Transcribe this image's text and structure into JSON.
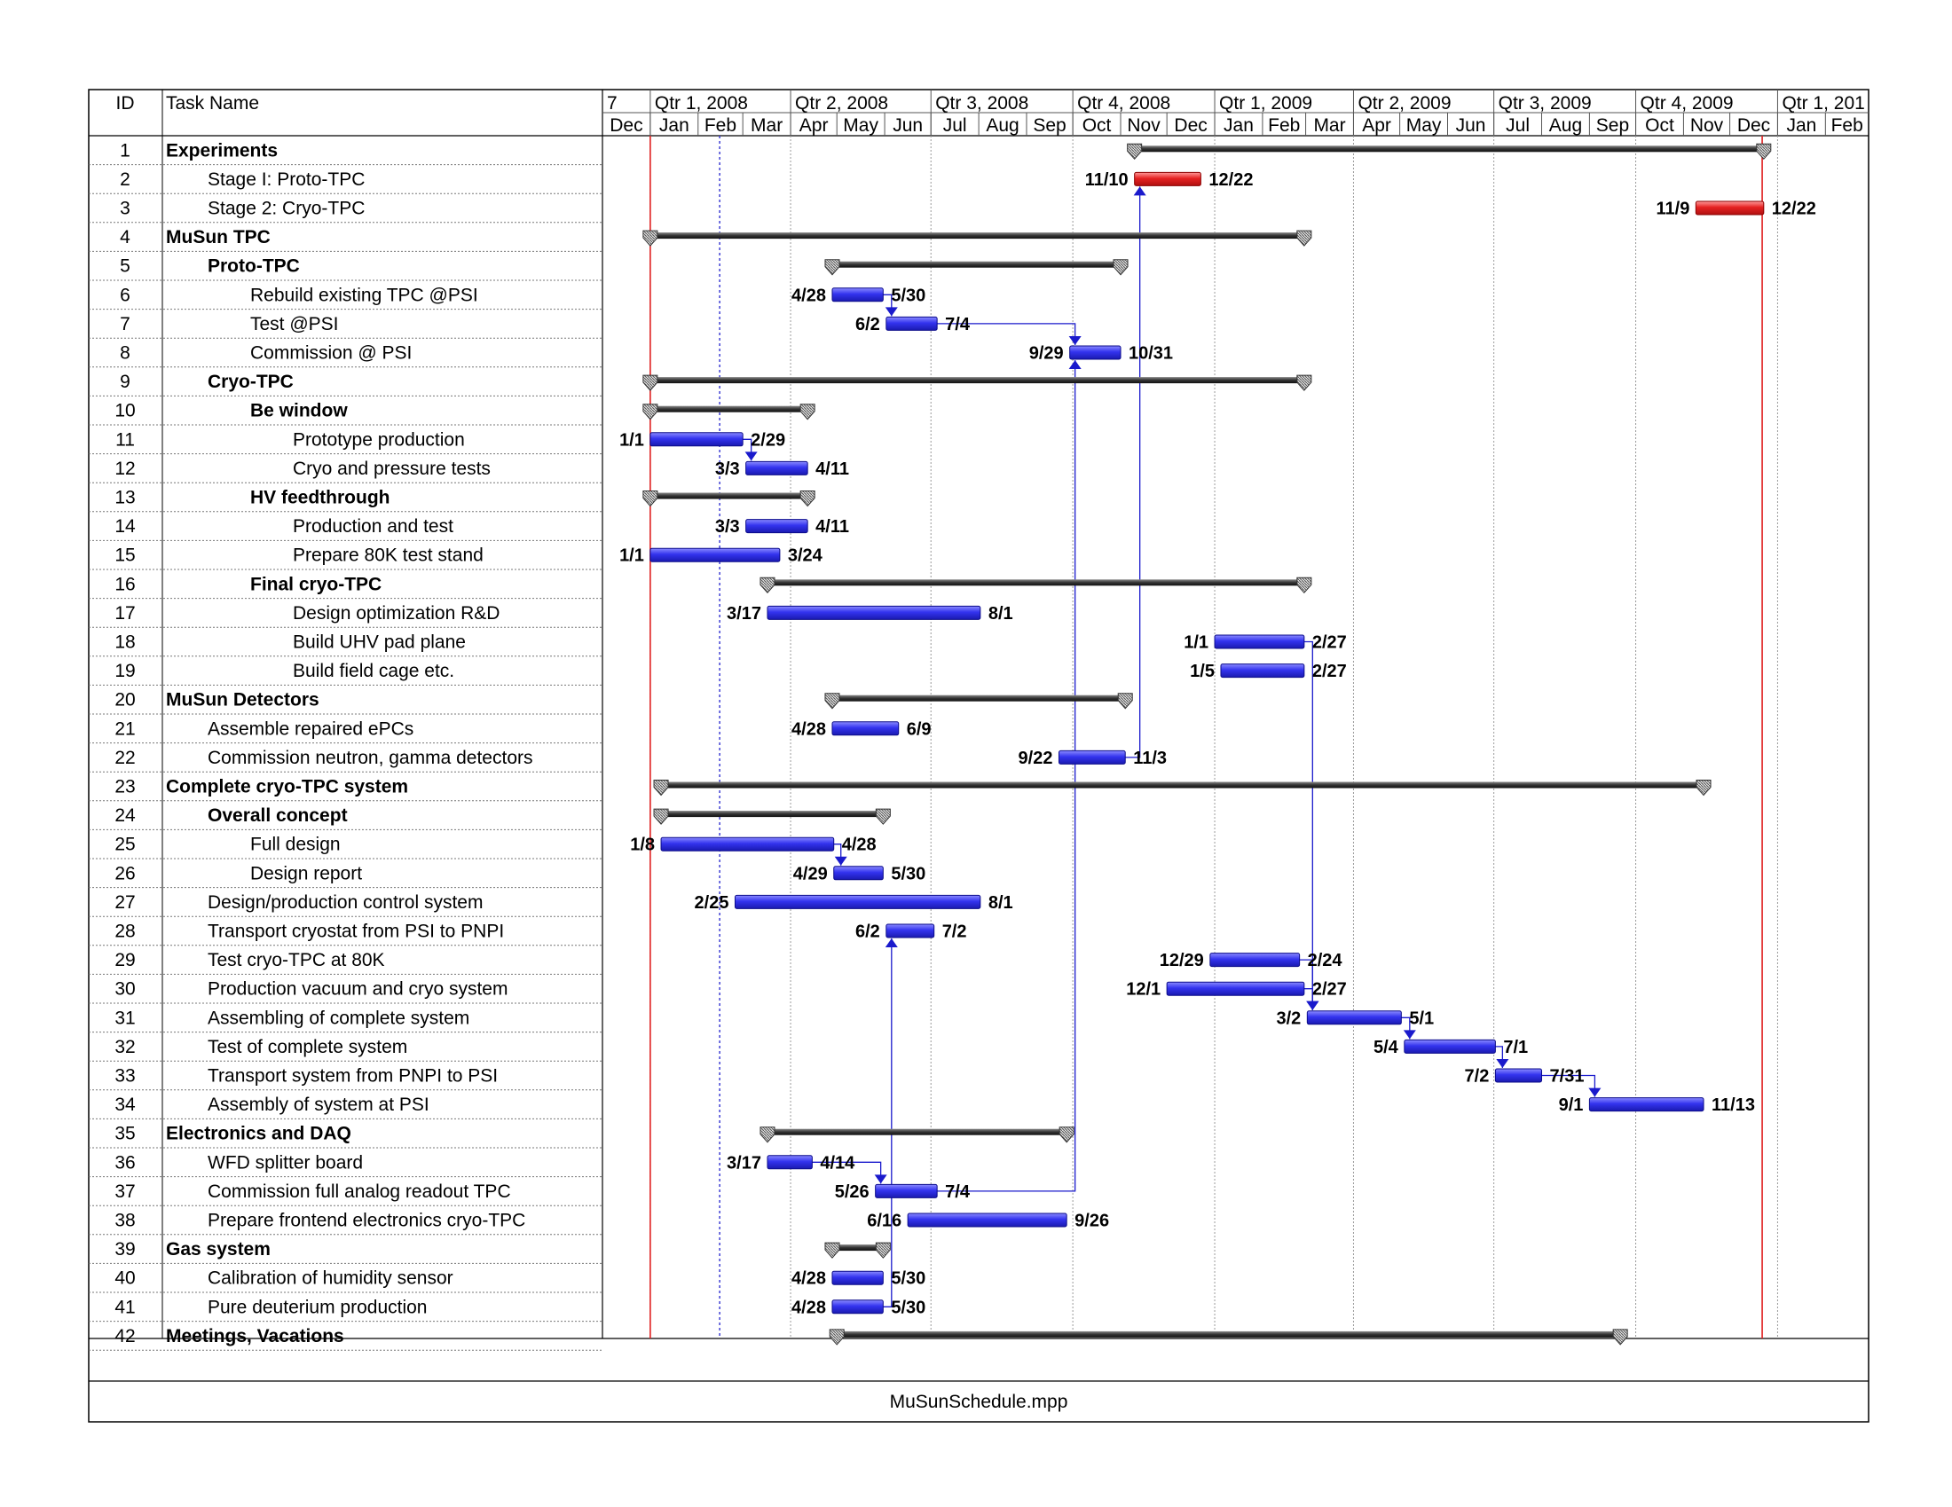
{
  "header": {
    "id": "ID",
    "task_name": "Task Name"
  },
  "footer": {
    "filename": "MuSunSchedule.mpp"
  },
  "colors": {
    "task_bar": "#3333ee",
    "milestone_bar": "#e52222",
    "summary_bar": "#333333",
    "today_line": "#e02020",
    "status_line": "#3030d0",
    "link": "#1a1acc"
  },
  "chart_data": {
    "type": "gantt",
    "timeline_start": "2007-12-01",
    "timeline_end": "2010-03-01",
    "quarters": [
      {
        "label": "7",
        "start": "2007-12-01",
        "end": "2008-01-01"
      },
      {
        "label": "Qtr 1, 2008",
        "start": "2008-01-01",
        "end": "2008-04-01"
      },
      {
        "label": "Qtr 2, 2008",
        "start": "2008-04-01",
        "end": "2008-07-01"
      },
      {
        "label": "Qtr 3, 2008",
        "start": "2008-07-01",
        "end": "2008-10-01"
      },
      {
        "label": "Qtr 4, 2008",
        "start": "2008-10-01",
        "end": "2009-01-01"
      },
      {
        "label": "Qtr 1, 2009",
        "start": "2009-01-01",
        "end": "2009-04-01"
      },
      {
        "label": "Qtr 2, 2009",
        "start": "2009-04-01",
        "end": "2009-07-01"
      },
      {
        "label": "Qtr 3, 2009",
        "start": "2009-07-01",
        "end": "2009-10-01"
      },
      {
        "label": "Qtr 4, 2009",
        "start": "2009-10-01",
        "end": "2010-01-01"
      },
      {
        "label": "Qtr 1, 201",
        "start": "2010-01-01",
        "end": "2010-03-01"
      }
    ],
    "months": [
      {
        "label": "Dec",
        "start": "2007-12-01",
        "end": "2008-01-01"
      },
      {
        "label": "Jan",
        "start": "2008-01-01",
        "end": "2008-02-01"
      },
      {
        "label": "Feb",
        "start": "2008-02-01",
        "end": "2008-03-01"
      },
      {
        "label": "Mar",
        "start": "2008-03-01",
        "end": "2008-04-01"
      },
      {
        "label": "Apr",
        "start": "2008-04-01",
        "end": "2008-05-01"
      },
      {
        "label": "May",
        "start": "2008-05-01",
        "end": "2008-06-01"
      },
      {
        "label": "Jun",
        "start": "2008-06-01",
        "end": "2008-07-01"
      },
      {
        "label": "Jul",
        "start": "2008-07-01",
        "end": "2008-08-01"
      },
      {
        "label": "Aug",
        "start": "2008-08-01",
        "end": "2008-09-01"
      },
      {
        "label": "Sep",
        "start": "2008-09-01",
        "end": "2008-10-01"
      },
      {
        "label": "Oct",
        "start": "2008-10-01",
        "end": "2008-11-01"
      },
      {
        "label": "Nov",
        "start": "2008-11-01",
        "end": "2008-12-01"
      },
      {
        "label": "Dec",
        "start": "2008-12-01",
        "end": "2009-01-01"
      },
      {
        "label": "Jan",
        "start": "2009-01-01",
        "end": "2009-02-01"
      },
      {
        "label": "Feb",
        "start": "2009-02-01",
        "end": "2009-03-01"
      },
      {
        "label": "Mar",
        "start": "2009-03-01",
        "end": "2009-04-01"
      },
      {
        "label": "Apr",
        "start": "2009-04-01",
        "end": "2009-05-01"
      },
      {
        "label": "May",
        "start": "2009-05-01",
        "end": "2009-06-01"
      },
      {
        "label": "Jun",
        "start": "2009-06-01",
        "end": "2009-07-01"
      },
      {
        "label": "Jul",
        "start": "2009-07-01",
        "end": "2009-08-01"
      },
      {
        "label": "Aug",
        "start": "2009-08-01",
        "end": "2009-09-01"
      },
      {
        "label": "Sep",
        "start": "2009-09-01",
        "end": "2009-10-01"
      },
      {
        "label": "Oct",
        "start": "2009-10-01",
        "end": "2009-11-01"
      },
      {
        "label": "Nov",
        "start": "2009-11-01",
        "end": "2009-12-01"
      },
      {
        "label": "Dec",
        "start": "2009-12-01",
        "end": "2010-01-01"
      },
      {
        "label": "Jan",
        "start": "2010-01-01",
        "end": "2010-02-01"
      },
      {
        "label": "Feb",
        "start": "2010-02-01",
        "end": "2010-03-01"
      }
    ],
    "today_line_date": "2008-01-01",
    "status_line_date": "2008-02-15",
    "end_line_date": "2009-12-22",
    "tasks": [
      {
        "id": "1",
        "name": "Experiments",
        "level": 0,
        "summary": true,
        "start": "2008-11-10",
        "end": "2009-12-22"
      },
      {
        "id": "2",
        "name": "Stage I: Proto-TPC",
        "level": 1,
        "kind": "red",
        "start": "2008-11-10",
        "end": "2008-12-22",
        "start_label": "11/10",
        "end_label": "12/22"
      },
      {
        "id": "3",
        "name": "Stage 2: Cryo-TPC",
        "level": 1,
        "kind": "red",
        "start": "2009-11-09",
        "end": "2009-12-22",
        "start_label": "11/9",
        "end_label": "12/22"
      },
      {
        "id": "4",
        "name": "MuSun TPC",
        "level": 0,
        "summary": true,
        "start": "2008-01-01",
        "end": "2009-02-27"
      },
      {
        "id": "5",
        "name": "Proto-TPC",
        "level": 1,
        "summary": true,
        "start": "2008-04-28",
        "end": "2008-10-31"
      },
      {
        "id": "6",
        "name": "Rebuild existing TPC @PSI",
        "level": 2,
        "start": "2008-04-28",
        "end": "2008-05-30",
        "start_label": "4/28",
        "end_label": "5/30"
      },
      {
        "id": "7",
        "name": "Test @PSI",
        "level": 2,
        "start": "2008-06-02",
        "end": "2008-07-04",
        "start_label": "6/2",
        "end_label": "7/4"
      },
      {
        "id": "8",
        "name": "Commission @ PSI",
        "level": 2,
        "start": "2008-09-29",
        "end": "2008-10-31",
        "start_label": "9/29",
        "end_label": "10/31"
      },
      {
        "id": "9",
        "name": "Cryo-TPC",
        "level": 1,
        "summary": true,
        "start": "2008-01-01",
        "end": "2009-02-27"
      },
      {
        "id": "10",
        "name": "Be window",
        "level": 2,
        "summary": true,
        "start": "2008-01-01",
        "end": "2008-04-11"
      },
      {
        "id": "11",
        "name": "Prototype production",
        "level": 3,
        "start": "2008-01-01",
        "end": "2008-02-29",
        "start_label": "1/1",
        "end_label": "2/29"
      },
      {
        "id": "12",
        "name": "Cryo and pressure tests",
        "level": 3,
        "start": "2008-03-03",
        "end": "2008-04-11",
        "start_label": "3/3",
        "end_label": "4/11"
      },
      {
        "id": "13",
        "name": "HV feedthrough",
        "level": 2,
        "summary": true,
        "start": "2008-01-01",
        "end": "2008-04-11"
      },
      {
        "id": "14",
        "name": "Production and test",
        "level": 3,
        "start": "2008-03-03",
        "end": "2008-04-11",
        "start_label": "3/3",
        "end_label": "4/11"
      },
      {
        "id": "15",
        "name": "Prepare 80K test stand",
        "level": 3,
        "start": "2008-01-01",
        "end": "2008-03-24",
        "start_label": "1/1",
        "end_label": "3/24"
      },
      {
        "id": "16",
        "name": "Final cryo-TPC",
        "level": 2,
        "summary": true,
        "start": "2008-03-17",
        "end": "2009-02-27"
      },
      {
        "id": "17",
        "name": "Design optimization R&D",
        "level": 3,
        "start": "2008-03-17",
        "end": "2008-08-01",
        "start_label": "3/17",
        "end_label": "8/1"
      },
      {
        "id": "18",
        "name": "Build UHV pad plane",
        "level": 3,
        "start": "2009-01-01",
        "end": "2009-02-27",
        "start_label": "1/1",
        "end_label": "2/27"
      },
      {
        "id": "19",
        "name": "Build field cage etc.",
        "level": 3,
        "start": "2009-01-05",
        "end": "2009-02-27",
        "start_label": "1/5",
        "end_label": "2/27"
      },
      {
        "id": "20",
        "name": "MuSun Detectors",
        "level": 0,
        "summary": true,
        "start": "2008-04-28",
        "end": "2008-11-03"
      },
      {
        "id": "21",
        "name": "Assemble repaired ePCs",
        "level": 1,
        "start": "2008-04-28",
        "end": "2008-06-09",
        "start_label": "4/28",
        "end_label": "6/9"
      },
      {
        "id": "22",
        "name": "Commission neutron, gamma detectors",
        "level": 1,
        "start": "2008-09-22",
        "end": "2008-11-03",
        "start_label": "9/22",
        "end_label": "11/3"
      },
      {
        "id": "23",
        "name": "Complete cryo-TPC system",
        "level": 0,
        "summary": true,
        "start": "2008-01-08",
        "end": "2009-11-13"
      },
      {
        "id": "24",
        "name": "Overall concept",
        "level": 1,
        "summary": true,
        "start": "2008-01-08",
        "end": "2008-05-30"
      },
      {
        "id": "25",
        "name": "Full design",
        "level": 2,
        "start": "2008-01-08",
        "end": "2008-04-28",
        "start_label": "1/8",
        "end_label": "4/28"
      },
      {
        "id": "26",
        "name": "Design report",
        "level": 2,
        "start": "2008-04-29",
        "end": "2008-05-30",
        "start_label": "4/29",
        "end_label": "5/30"
      },
      {
        "id": "27",
        "name": "Design/production control system",
        "level": 1,
        "start": "2008-02-25",
        "end": "2008-08-01",
        "start_label": "2/25",
        "end_label": "8/1"
      },
      {
        "id": "28",
        "name": "Transport cryostat from PSI to PNPI",
        "level": 1,
        "start": "2008-06-02",
        "end": "2008-07-02",
        "start_label": "6/2",
        "end_label": "7/2"
      },
      {
        "id": "29",
        "name": "Test cryo-TPC at 80K",
        "level": 1,
        "start": "2008-12-29",
        "end": "2009-02-24",
        "start_label": "12/29",
        "end_label": "2/24"
      },
      {
        "id": "30",
        "name": "Production vacuum and cryo system",
        "level": 1,
        "start": "2008-12-01",
        "end": "2009-02-27",
        "start_label": "12/1",
        "end_label": "2/27"
      },
      {
        "id": "31",
        "name": "Assembling of complete system",
        "level": 1,
        "start": "2009-03-02",
        "end": "2009-05-01",
        "start_label": "3/2",
        "end_label": "5/1"
      },
      {
        "id": "32",
        "name": "Test of complete system",
        "level": 1,
        "start": "2009-05-04",
        "end": "2009-07-01",
        "start_label": "5/4",
        "end_label": "7/1"
      },
      {
        "id": "33",
        "name": "Transport system from PNPI to PSI",
        "level": 1,
        "start": "2009-07-02",
        "end": "2009-07-31",
        "start_label": "7/2",
        "end_label": "7/31"
      },
      {
        "id": "34",
        "name": "Assembly of system at PSI",
        "level": 1,
        "start": "2009-09-01",
        "end": "2009-11-13",
        "start_label": "9/1",
        "end_label": "11/13"
      },
      {
        "id": "35",
        "name": "Electronics and DAQ",
        "level": 0,
        "summary": true,
        "start": "2008-03-17",
        "end": "2008-09-26"
      },
      {
        "id": "36",
        "name": "WFD splitter board",
        "level": 1,
        "start": "2008-03-17",
        "end": "2008-04-14",
        "start_label": "3/17",
        "end_label": "4/14"
      },
      {
        "id": "37",
        "name": "Commission full analog readout TPC",
        "level": 1,
        "start": "2008-05-26",
        "end": "2008-07-04",
        "start_label": "5/26",
        "end_label": "7/4"
      },
      {
        "id": "38",
        "name": "Prepare frontend electronics cryo-TPC",
        "level": 1,
        "start": "2008-06-16",
        "end": "2008-09-26",
        "start_label": "6/16",
        "end_label": "9/26"
      },
      {
        "id": "39",
        "name": "Gas system",
        "level": 0,
        "summary": true,
        "start": "2008-04-28",
        "end": "2008-05-30"
      },
      {
        "id": "40",
        "name": "Calibration of humidity sensor",
        "level": 1,
        "start": "2008-04-28",
        "end": "2008-05-30",
        "start_label": "4/28",
        "end_label": "5/30"
      },
      {
        "id": "41",
        "name": "Pure deuterium production",
        "level": 1,
        "start": "2008-04-28",
        "end": "2008-05-30",
        "start_label": "4/28",
        "end_label": "5/30"
      },
      {
        "id": "42",
        "name": "Meetings,  Vacations",
        "level": 0,
        "summary": true,
        "start": "2008-05-01",
        "end": "2009-09-20"
      }
    ],
    "links": [
      [
        "6",
        "7"
      ],
      [
        "7",
        "8"
      ],
      [
        "11",
        "12"
      ],
      [
        "25",
        "26"
      ],
      [
        "36",
        "37"
      ],
      [
        "18",
        "31"
      ],
      [
        "29",
        "31"
      ],
      [
        "30",
        "31"
      ],
      [
        "31",
        "32"
      ],
      [
        "32",
        "33"
      ],
      [
        "33",
        "34"
      ],
      [
        "22",
        "2"
      ],
      [
        "37",
        "8"
      ],
      [
        "41",
        "28"
      ]
    ]
  }
}
